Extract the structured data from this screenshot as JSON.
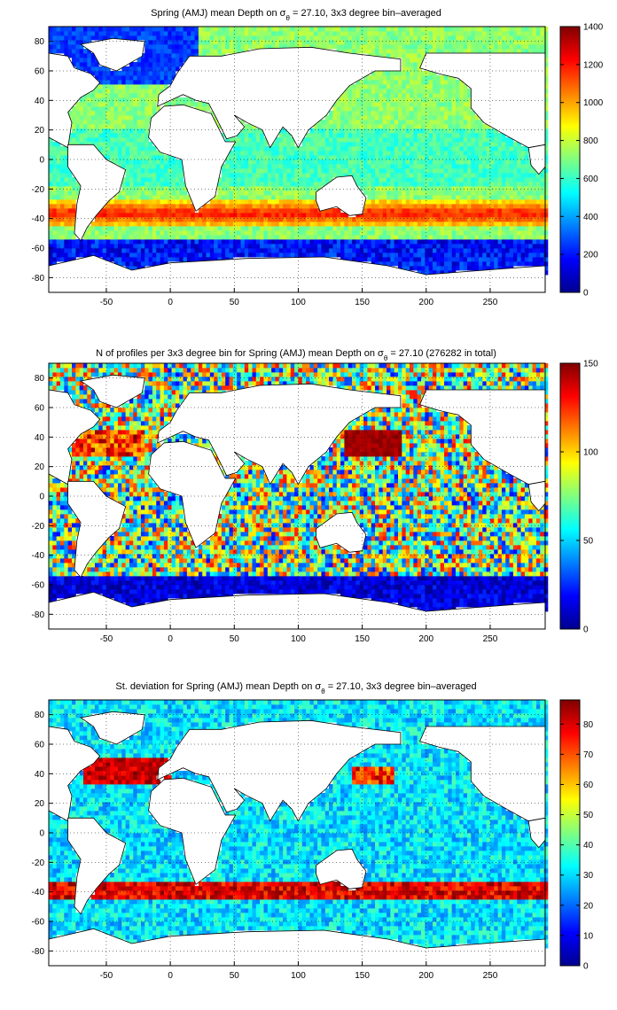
{
  "figure": {
    "panels": [
      {
        "id": "mean-depth",
        "title_prefix": "Spring (AMJ) mean Depth on σ",
        "title_sub": "θ",
        "title_suffix": " = 27.10, 3x3 degree bin–averaged",
        "colorbar": {
          "min": 0,
          "max": 1400,
          "ticks": [
            0,
            200,
            400,
            600,
            800,
            1000,
            1200,
            1400
          ]
        },
        "field_model": "depth"
      },
      {
        "id": "n-profiles",
        "title_prefix": "N of profiles per 3x3 degree bin for Spring (AMJ) mean Depth on σ",
        "title_sub": "θ",
        "title_suffix": " = 27.10 (276282 in total)",
        "colorbar": {
          "min": 0,
          "max": 150,
          "ticks": [
            0,
            50,
            100,
            150
          ]
        },
        "field_model": "count"
      },
      {
        "id": "st-deviation",
        "title_prefix": "St. deviation for Spring (AMJ) mean Depth on σ",
        "title_sub": "θ",
        "title_suffix": " = 27.10, 3x3 degree bin–averaged",
        "colorbar": {
          "min": 0,
          "max": 88,
          "ticks": [
            0,
            10,
            20,
            30,
            40,
            50,
            60,
            70,
            80
          ]
        },
        "field_model": "stdev"
      }
    ],
    "axes": {
      "x_range": [
        -95,
        293
      ],
      "y_range": [
        -90,
        90
      ],
      "x_ticks": [
        -50,
        0,
        50,
        100,
        150,
        200,
        250
      ],
      "y_ticks": [
        -80,
        -60,
        -40,
        -20,
        0,
        20,
        40,
        60,
        80
      ],
      "grid": "dotted"
    },
    "colormap": "jet"
  }
}
